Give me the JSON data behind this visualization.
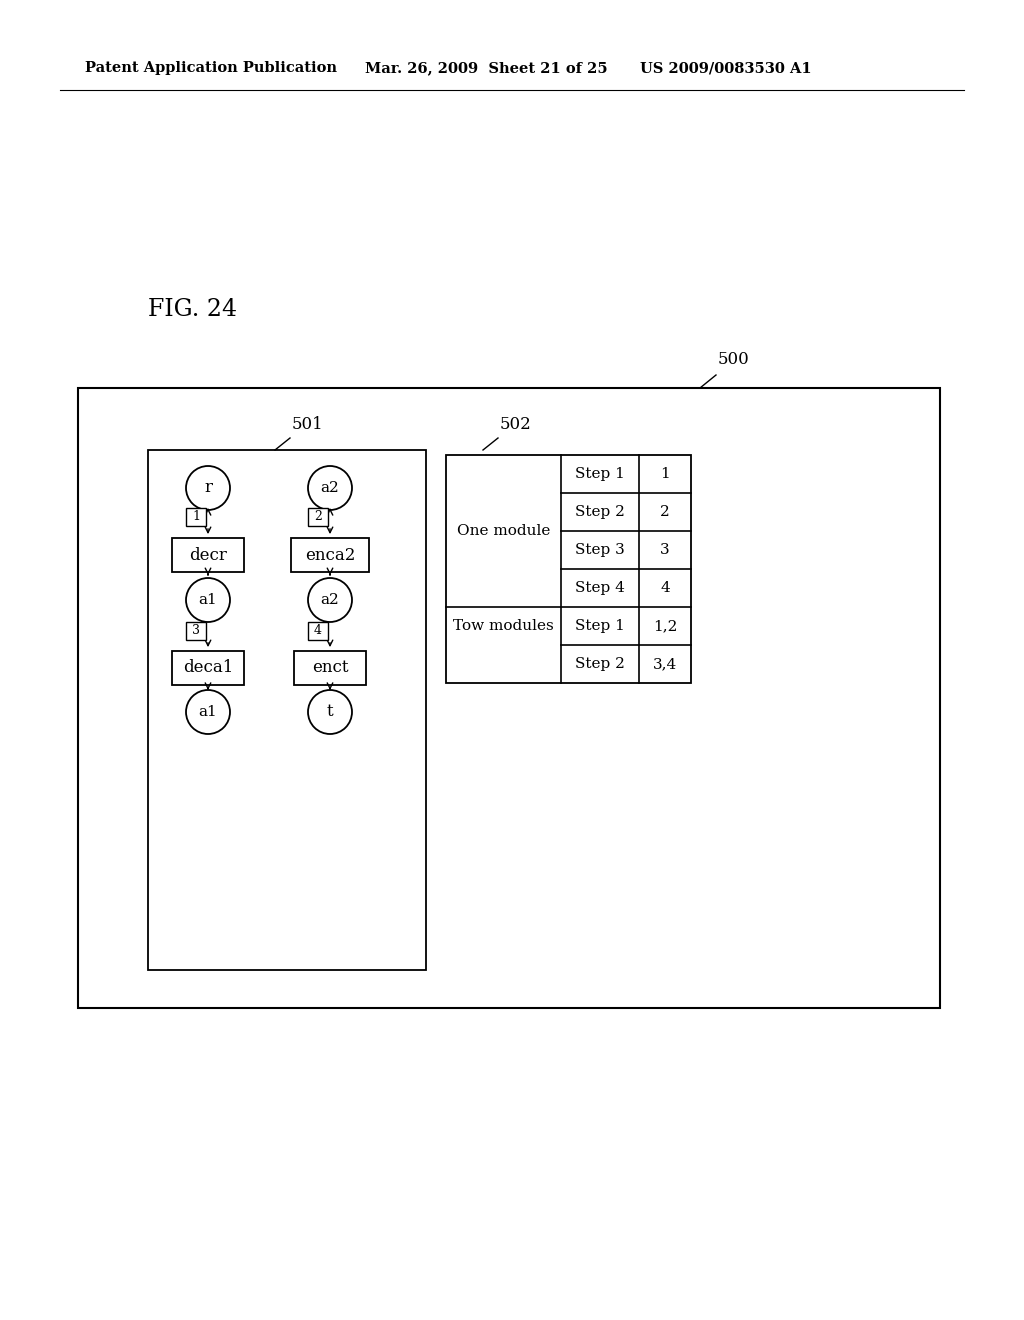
{
  "fig_label": "FIG. 24",
  "header_left": "Patent Application Publication",
  "header_mid": "Mar. 26, 2009  Sheet 21 of 25",
  "header_right": "US 2009/0083530 A1",
  "label_500": "500",
  "label_501": "501",
  "label_502": "502",
  "bg_color": "#ffffff",
  "line_color": "#000000"
}
